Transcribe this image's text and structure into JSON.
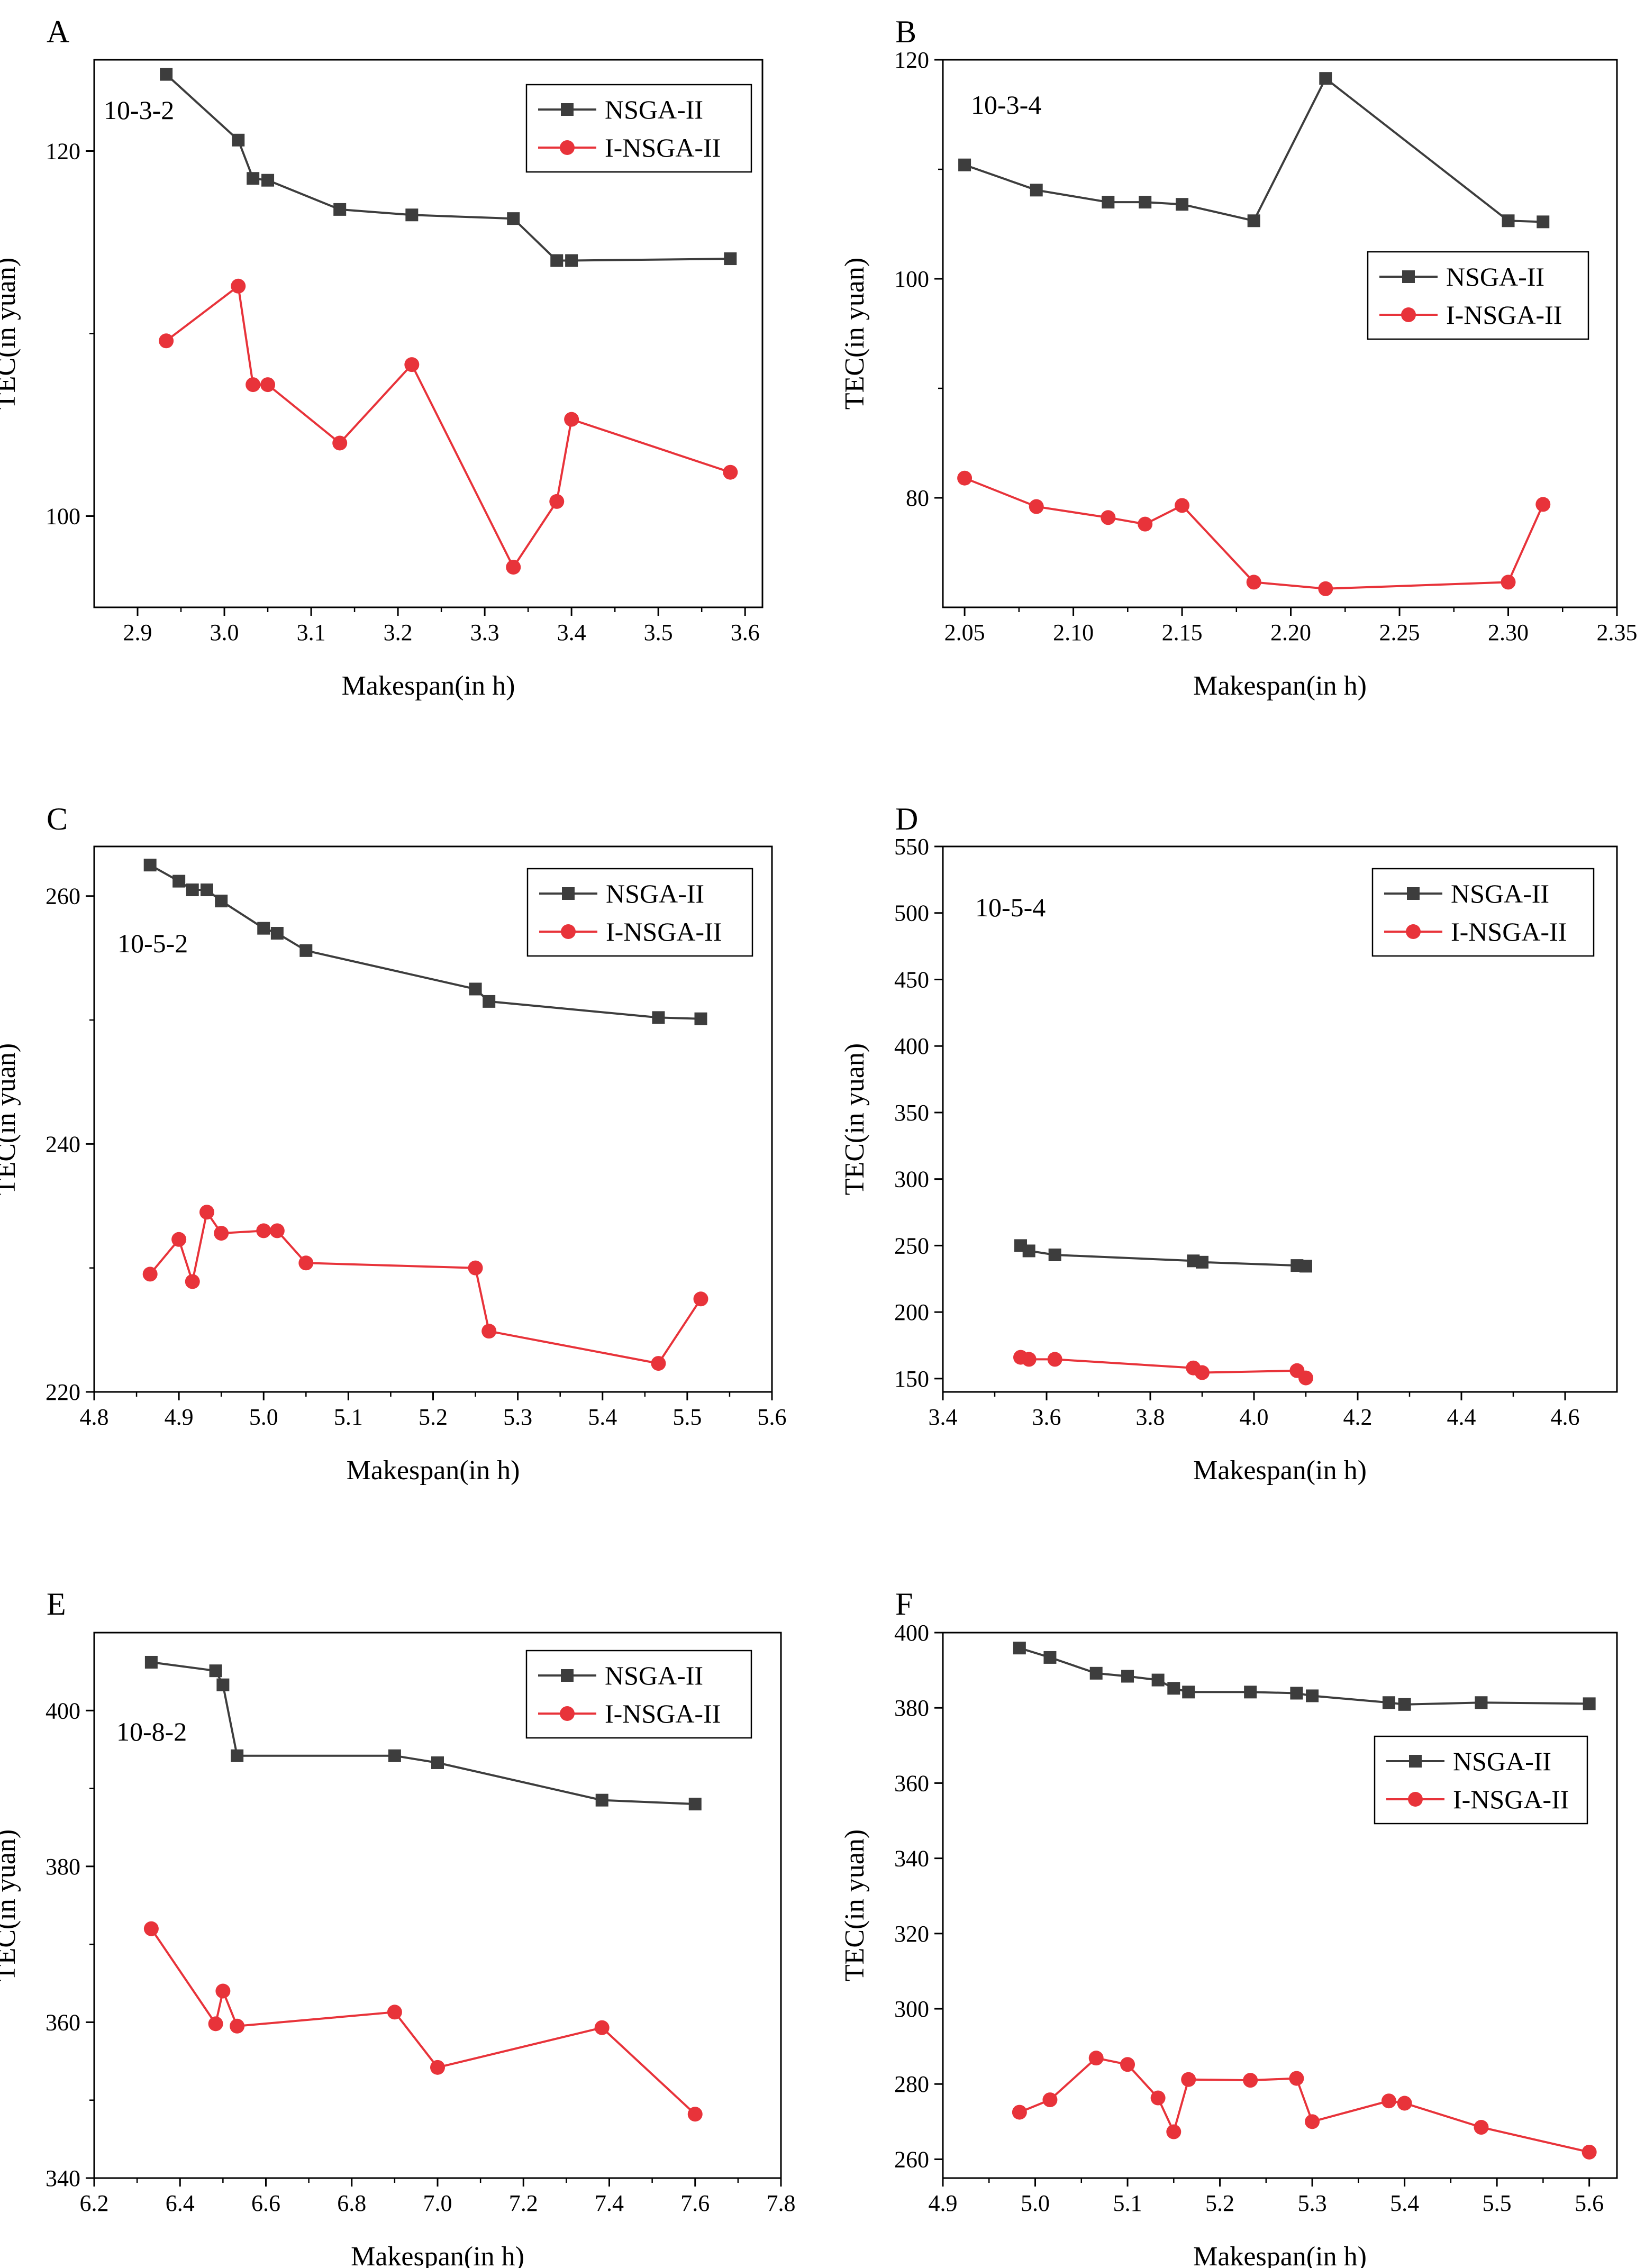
{
  "figure": {
    "colors": {
      "nsga": "#3d3d3d",
      "insga": "#e8333a",
      "axis": "#000000"
    }
  },
  "chart_data": [
    {
      "panel": "A",
      "type": "line",
      "instance": "10-3-2",
      "xlabel": "Makespan(in h)",
      "ylabel": "TEC(in yuan)",
      "xlim": [
        2.85,
        3.62
      ],
      "ylim": [
        95,
        125
      ],
      "xticks": [
        2.9,
        3.0,
        3.1,
        3.2,
        3.3,
        3.4,
        3.5,
        3.6
      ],
      "xtick_labels": [
        "2.9",
        "3.0",
        "3.1",
        "3.2",
        "3.3",
        "3.4",
        "3.5",
        "3.6"
      ],
      "yticks": [
        100,
        120
      ],
      "ytick_labels": [
        "100",
        "120"
      ],
      "minor_yticks": [
        110
      ],
      "legend": "top-right",
      "series": [
        {
          "name": "NSGA-II",
          "marker": "square",
          "x": [
            2.933,
            3.016,
            3.033,
            3.05,
            3.133,
            3.216,
            3.333,
            3.383,
            3.4,
            3.583
          ],
          "y": [
            124.2,
            120.6,
            118.5,
            118.4,
            116.8,
            116.5,
            116.3,
            114.0,
            114.0,
            114.1
          ]
        },
        {
          "name": "I-NSGA-II",
          "marker": "circle",
          "x": [
            2.933,
            3.016,
            3.033,
            3.05,
            3.133,
            3.216,
            3.333,
            3.383,
            3.4,
            3.583
          ],
          "y": [
            109.6,
            112.6,
            107.2,
            107.2,
            104.0,
            108.3,
            97.2,
            100.8,
            105.3,
            102.4
          ]
        }
      ]
    },
    {
      "panel": "B",
      "type": "line",
      "instance": "10-3-4",
      "xlabel": "Makespan(in h)",
      "ylabel": "TEC(in yuan)",
      "xlim": [
        2.04,
        2.35
      ],
      "ylim": [
        70,
        120
      ],
      "xticks": [
        2.05,
        2.1,
        2.15,
        2.2,
        2.25,
        2.3,
        2.35
      ],
      "xtick_labels": [
        "2.05",
        "2.10",
        "2.15",
        "2.20",
        "2.25",
        "2.30",
        "2.35"
      ],
      "yticks": [
        80,
        100,
        120
      ],
      "ytick_labels": [
        "80",
        "100",
        "120"
      ],
      "minor_yticks": [
        90,
        110
      ],
      "legend": "middle-right",
      "series": [
        {
          "name": "NSGA-II",
          "marker": "square",
          "x": [
            2.05,
            2.083,
            2.116,
            2.133,
            2.15,
            2.183,
            2.216,
            2.3,
            2.316
          ],
          "y": [
            110.4,
            108.1,
            107.0,
            107.0,
            106.8,
            105.3,
            118.3,
            105.3,
            105.2
          ]
        },
        {
          "name": "I-NSGA-II",
          "marker": "circle",
          "x": [
            2.05,
            2.083,
            2.116,
            2.133,
            2.15,
            2.183,
            2.216,
            2.3,
            2.316
          ],
          "y": [
            81.8,
            79.2,
            78.2,
            77.6,
            79.3,
            72.3,
            71.7,
            72.3,
            79.4
          ]
        }
      ]
    },
    {
      "panel": "C",
      "type": "line",
      "instance": "10-5-2",
      "xlabel": "Makespan(in h)",
      "ylabel": "TEC(in yuan)",
      "xlim": [
        4.8,
        5.6
      ],
      "ylim": [
        220,
        264
      ],
      "xticks": [
        4.8,
        4.9,
        5.0,
        5.1,
        5.2,
        5.3,
        5.4,
        5.5,
        5.6
      ],
      "xtick_labels": [
        "4.8",
        "4.9",
        "5.0",
        "5.1",
        "5.2",
        "5.3",
        "5.4",
        "5.5",
        "5.6"
      ],
      "yticks": [
        220,
        240,
        260
      ],
      "ytick_labels": [
        "220",
        "240",
        "260"
      ],
      "minor_yticks": [
        230,
        250
      ],
      "legend": "top-right",
      "series": [
        {
          "name": "NSGA-II",
          "marker": "square",
          "x": [
            4.866,
            4.9,
            4.916,
            4.933,
            4.95,
            5.0,
            5.016,
            5.05,
            5.25,
            5.266,
            5.466,
            5.516
          ],
          "y": [
            262.5,
            261.2,
            260.5,
            260.5,
            259.6,
            257.4,
            257.0,
            255.6,
            252.5,
            251.5,
            250.2,
            250.1
          ]
        },
        {
          "name": "I-NSGA-II",
          "marker": "circle",
          "x": [
            4.866,
            4.9,
            4.916,
            4.933,
            4.95,
            5.0,
            5.016,
            5.05,
            5.25,
            5.266,
            5.466,
            5.516
          ],
          "y": [
            229.5,
            232.3,
            228.9,
            234.5,
            232.8,
            233.0,
            233.0,
            230.4,
            230.0,
            224.9,
            222.3,
            227.5
          ]
        }
      ]
    },
    {
      "panel": "D",
      "type": "line",
      "instance": "10-5-4",
      "xlabel": "Makespan(in h)",
      "ylabel": "TEC(in yuan)",
      "xlim": [
        3.4,
        4.7
      ],
      "ylim": [
        140,
        550
      ],
      "xticks": [
        3.4,
        3.6,
        3.8,
        4.0,
        4.2,
        4.4,
        4.6
      ],
      "xtick_labels": [
        "3.4",
        "3.6",
        "3.8",
        "4.0",
        "4.2",
        "4.4",
        "4.6"
      ],
      "yticks": [
        150,
        200,
        250,
        300,
        350,
        400,
        450,
        500,
        550
      ],
      "ytick_labels": [
        "150",
        "200",
        "250",
        "300",
        "350",
        "400",
        "450",
        "500",
        "550"
      ],
      "minor_yticks": [],
      "legend": "top-right",
      "series": [
        {
          "name": "NSGA-II",
          "marker": "square",
          "x": [
            3.55,
            3.566,
            3.616,
            3.883,
            3.9,
            4.083,
            4.1
          ],
          "y": [
            250.0,
            246.0,
            243.0,
            238.5,
            237.5,
            235.0,
            234.5
          ]
        },
        {
          "name": "I-NSGA-II",
          "marker": "circle",
          "x": [
            3.55,
            3.566,
            3.616,
            3.883,
            3.9,
            4.083,
            4.1
          ],
          "y": [
            166.0,
            164.5,
            164.5,
            158.0,
            154.5,
            156.0,
            150.5
          ]
        }
      ]
    },
    {
      "panel": "E",
      "type": "line",
      "instance": "10-8-2",
      "xlabel": "Makespan(in h)",
      "ylabel": "TEC(in yuan)",
      "xlim": [
        6.2,
        7.8
      ],
      "ylim": [
        340,
        410
      ],
      "xticks": [
        6.2,
        6.4,
        6.6,
        6.8,
        7.0,
        7.2,
        7.4,
        7.6,
        7.8
      ],
      "xtick_labels": [
        "6.2",
        "6.4",
        "6.6",
        "6.8",
        "7.0",
        "7.2",
        "7.4",
        "7.6",
        "7.8"
      ],
      "yticks": [
        340,
        360,
        380,
        400
      ],
      "ytick_labels": [
        "340",
        "360",
        "380",
        "400"
      ],
      "minor_yticks": [
        350,
        370,
        390
      ],
      "legend": "top-right",
      "series": [
        {
          "name": "NSGA-II",
          "marker": "square",
          "x": [
            6.333,
            6.483,
            6.5,
            6.533,
            6.9,
            7.0,
            7.383,
            7.6
          ],
          "y": [
            406.2,
            405.1,
            403.3,
            394.2,
            394.2,
            393.3,
            388.5,
            388.0
          ]
        },
        {
          "name": "I-NSGA-II",
          "marker": "circle",
          "x": [
            6.333,
            6.483,
            6.5,
            6.533,
            6.9,
            7.0,
            7.383,
            7.6
          ],
          "y": [
            372.0,
            359.8,
            364.0,
            359.5,
            361.3,
            354.2,
            359.3,
            348.2
          ]
        }
      ]
    },
    {
      "panel": "F",
      "type": "line",
      "instance": "",
      "xlabel": "Makespan(in h)",
      "ylabel": "TEC(in yuan)",
      "xlim": [
        4.9,
        5.63
      ],
      "ylim": [
        255,
        400
      ],
      "xticks": [
        4.9,
        5.0,
        5.1,
        5.2,
        5.3,
        5.4,
        5.5,
        5.6
      ],
      "xtick_labels": [
        "4.9",
        "5.0",
        "5.1",
        "5.2",
        "5.3",
        "5.4",
        "5.5",
        "5.6"
      ],
      "yticks": [
        260,
        280,
        300,
        320,
        340,
        360,
        380,
        400
      ],
      "ytick_labels": [
        "260",
        "280",
        "300",
        "320",
        "340",
        "360",
        "380",
        "400"
      ],
      "minor_yticks": [],
      "legend": "middle-right",
      "series": [
        {
          "name": "NSGA-II",
          "marker": "square",
          "x": [
            4.983,
            5.016,
            5.066,
            5.1,
            5.133,
            5.15,
            5.166,
            5.233,
            5.283,
            5.3,
            5.383,
            5.4,
            5.483,
            5.6
          ],
          "y": [
            395.9,
            393.4,
            389.2,
            388.4,
            387.4,
            385.2,
            384.2,
            384.2,
            383.9,
            383.2,
            381.4,
            380.9,
            381.4,
            381.1
          ]
        },
        {
          "name": "I-NSGA-II",
          "marker": "circle",
          "x": [
            4.983,
            5.016,
            5.066,
            5.1,
            5.133,
            5.15,
            5.166,
            5.233,
            5.283,
            5.3,
            5.383,
            5.4,
            5.483,
            5.6
          ],
          "y": [
            272.5,
            275.8,
            286.9,
            285.2,
            276.3,
            267.3,
            281.2,
            281.0,
            281.5,
            270.0,
            275.5,
            274.9,
            268.5,
            261.9
          ]
        }
      ]
    }
  ]
}
